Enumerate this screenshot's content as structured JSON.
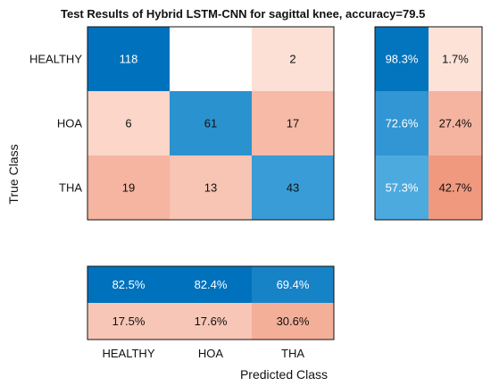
{
  "chart_data": {
    "type": "heatmap",
    "title": "Test Results of Hybrid LSTM-CNN for sagittal knee, accuracy=79.5",
    "xlabel": "Predicted Class",
    "ylabel": "True Class",
    "classes": [
      "HEALTHY",
      "HOA",
      "THA"
    ],
    "matrix": [
      [
        118,
        null,
        2
      ],
      [
        6,
        61,
        17
      ],
      [
        19,
        13,
        43
      ]
    ],
    "row_summary": [
      [
        "98.3%",
        "1.7%"
      ],
      [
        "72.6%",
        "27.4%"
      ],
      [
        "57.3%",
        "42.7%"
      ]
    ],
    "row_summary_values": [
      [
        98.3,
        1.7
      ],
      [
        72.6,
        27.4
      ],
      [
        57.3,
        42.7
      ]
    ],
    "column_summary": [
      [
        "82.5%",
        "82.4%",
        "69.4%"
      ],
      [
        "17.5%",
        "17.6%",
        "30.6%"
      ]
    ],
    "column_summary_values": [
      [
        82.5,
        82.4,
        69.4
      ],
      [
        17.5,
        17.6,
        30.6
      ]
    ],
    "colors": {
      "correct_dark": "#0072bd",
      "correct_mid": "#5ab4e5",
      "error_dark": "#f0957a",
      "error_light": "#fde5dc",
      "empty": "#ffffff",
      "grid_border": "#111111",
      "text_light": "#ffffff",
      "text_dark": "#111111"
    }
  }
}
